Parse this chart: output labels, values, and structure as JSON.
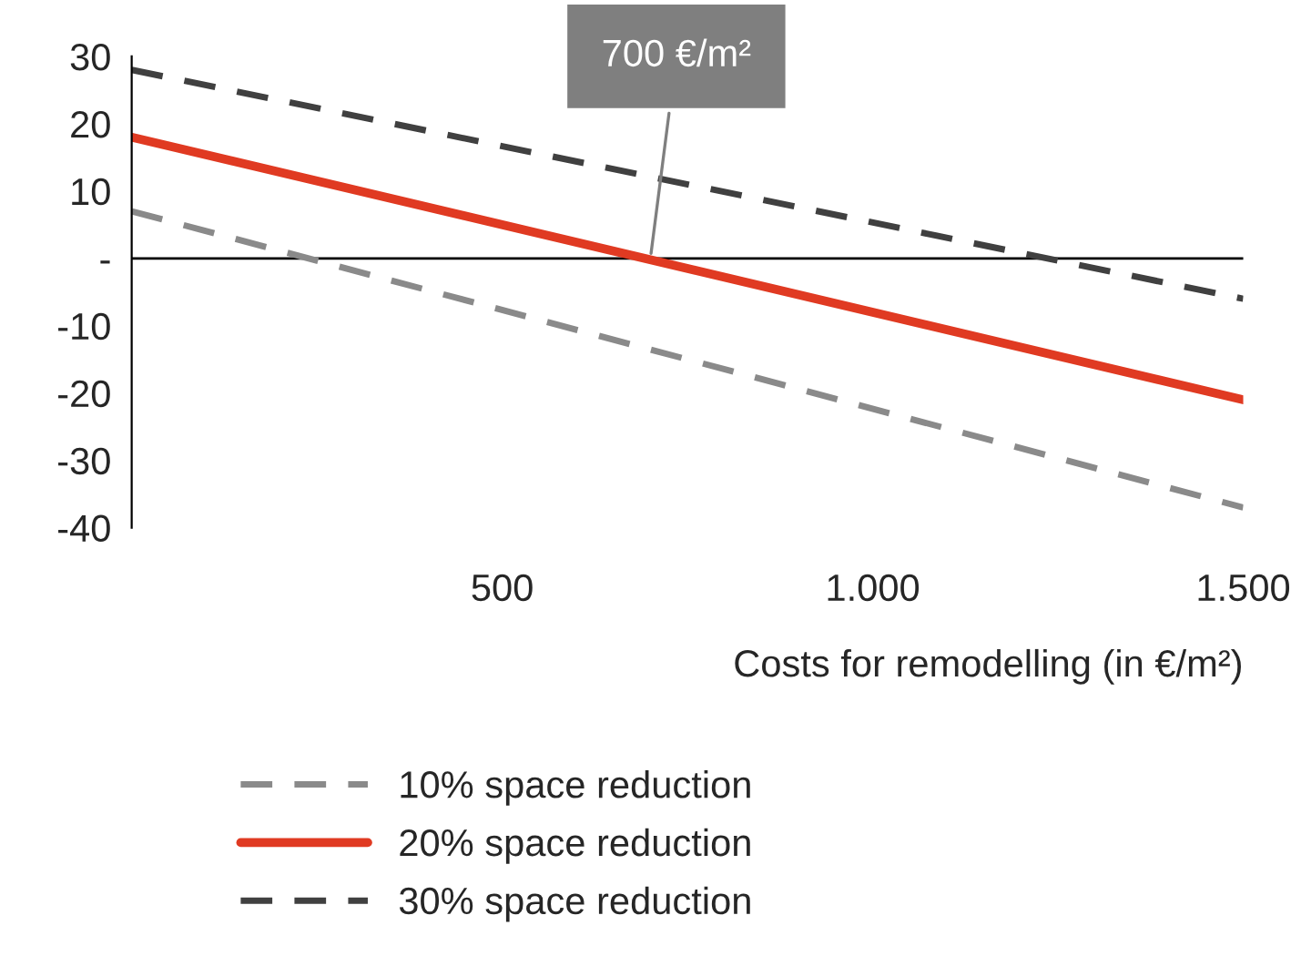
{
  "chart_data": {
    "type": "line",
    "xlabel": "Costs for remodelling (in €/m²)",
    "xlim": [
      0,
      1500
    ],
    "ylim": [
      -40,
      30
    ],
    "xticks": [
      500,
      {
        "value": 1000,
        "label": "1.000"
      },
      {
        "value": 1500,
        "label": "1.500"
      }
    ],
    "yticks": [
      30,
      20,
      10,
      {
        "value": 0,
        "label": "-"
      },
      -10,
      -20,
      -30,
      -40
    ],
    "x": [
      0,
      1500
    ],
    "grid": false,
    "legend": "bottom",
    "ref_lines": [
      {
        "axis": "y",
        "value": 0,
        "color": "#000000"
      }
    ],
    "annotations": [
      {
        "text": "700 €/m²",
        "x": 700,
        "y": 0
      }
    ],
    "series": [
      {
        "name": "10% space reduction",
        "color": "#8a8a8a",
        "line_style": "dashed",
        "values": [
          7,
          -37
        ]
      },
      {
        "name": "20% space reduction",
        "color": "#e03a22",
        "line_style": "solid",
        "values": [
          18,
          -21
        ]
      },
      {
        "name": "30% space reduction",
        "color": "#404040",
        "line_style": "dashed",
        "values": [
          28,
          -6
        ]
      }
    ]
  }
}
